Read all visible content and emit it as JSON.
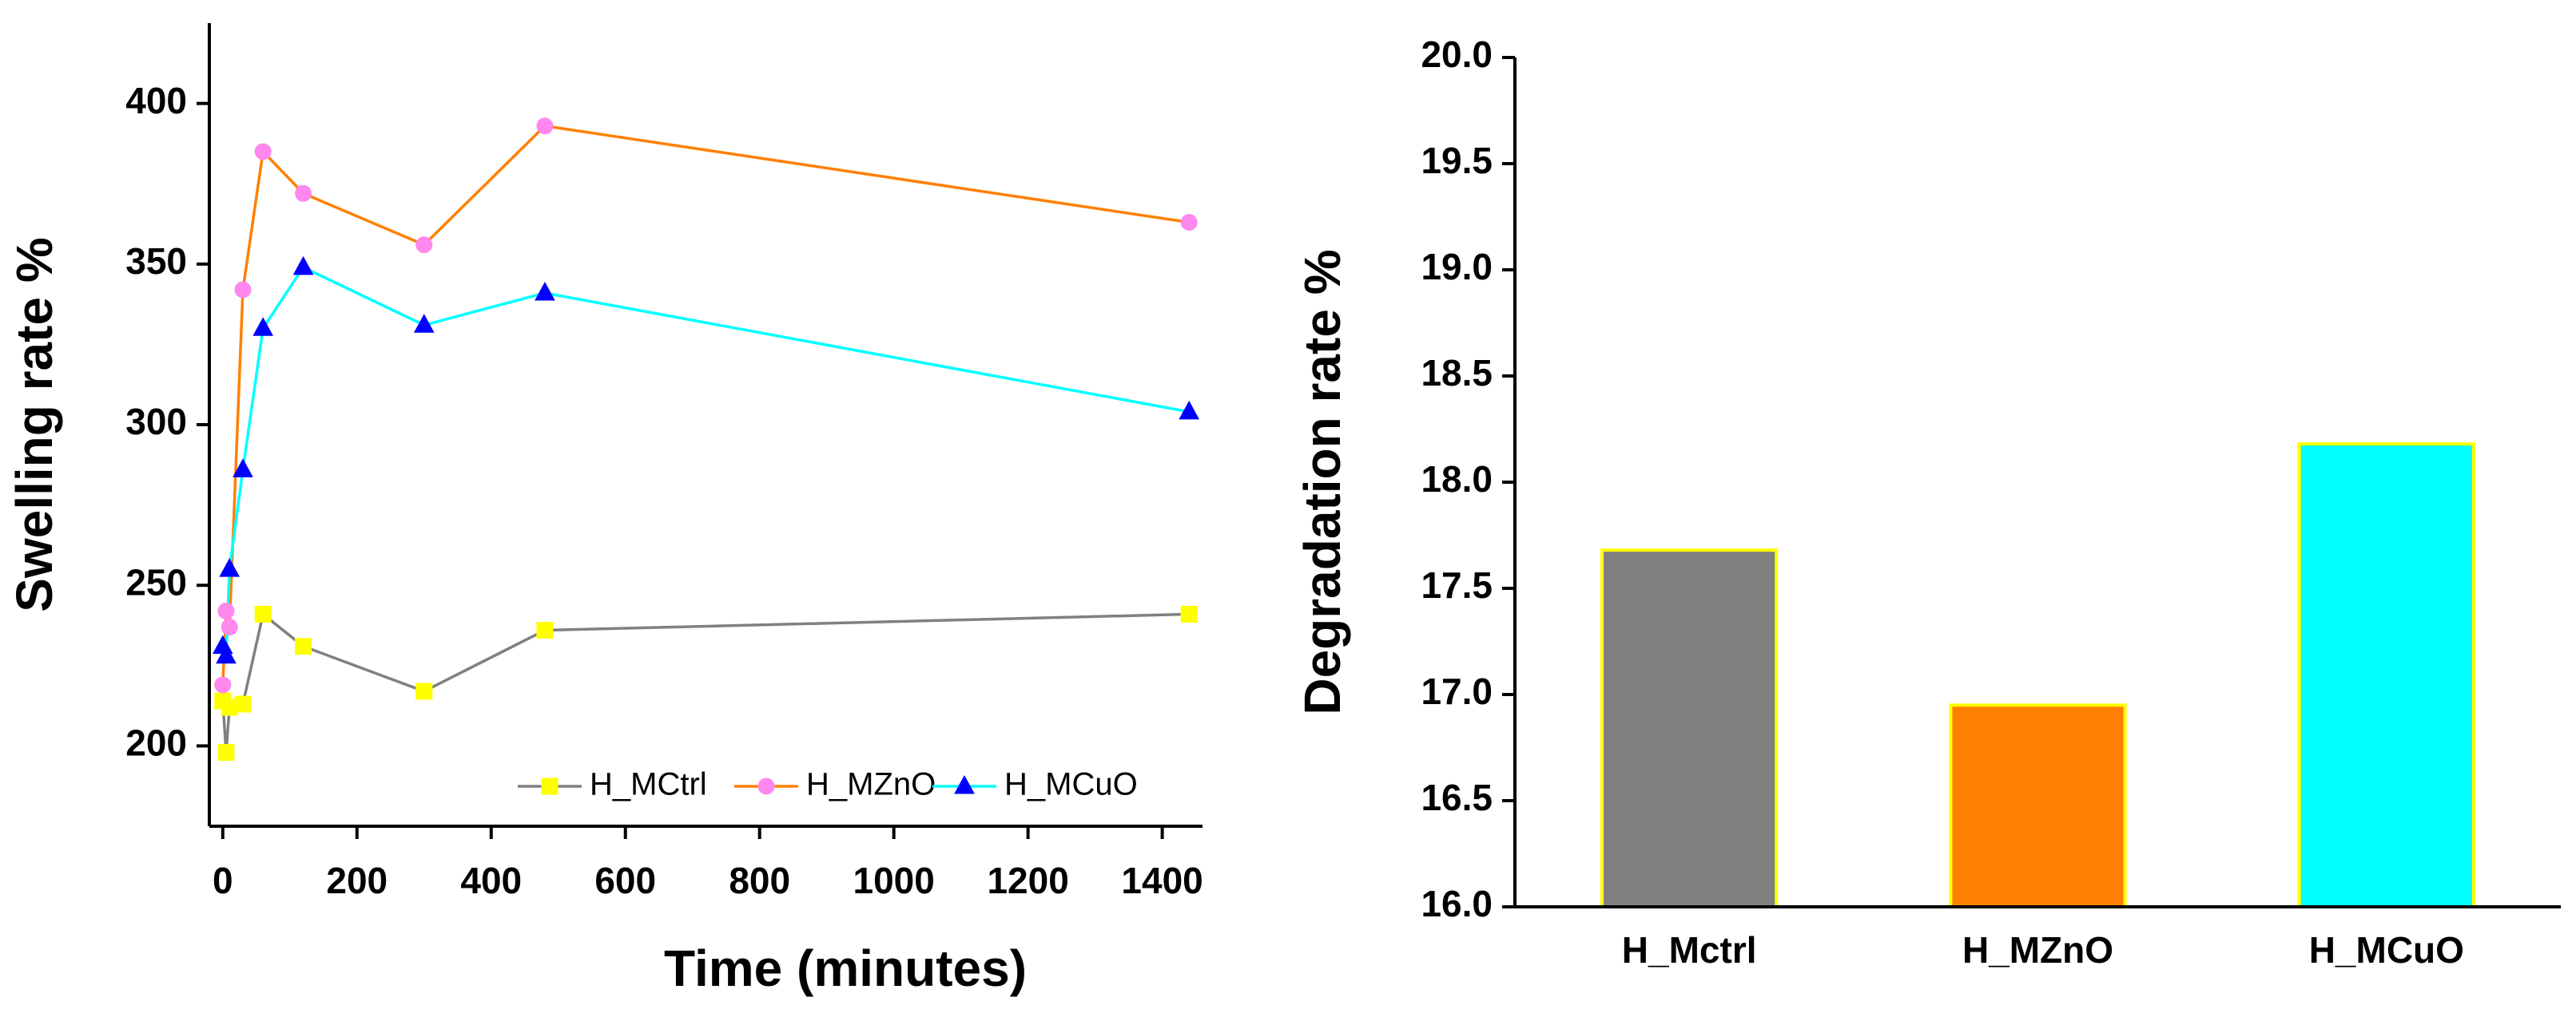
{
  "chart_data": [
    {
      "type": "line",
      "x_label": "Time (minutes)",
      "y_label": "Swelling rate %",
      "x": [
        0,
        5,
        10,
        30,
        60,
        120,
        300,
        480,
        1440
      ],
      "series": [
        {
          "name": "H_MCtrl",
          "color": "#808080",
          "marker": "square",
          "marker_color": "#ffff00",
          "values": [
            214,
            198,
            212,
            213,
            241,
            231,
            217,
            236,
            241
          ]
        },
        {
          "name": "H_MZnO",
          "color": "#ff8000",
          "marker": "circle",
          "marker_color": "#ff88ee",
          "values": [
            219,
            242,
            237,
            342,
            385,
            372,
            356,
            393,
            363
          ]
        },
        {
          "name": "H_MCuO",
          "color": "#00ffff",
          "marker": "triangle",
          "marker_color": "#0000ff",
          "values": [
            231,
            228,
            255,
            286,
            330,
            349,
            331,
            341,
            304
          ]
        }
      ],
      "xlim": [
        -20,
        1460
      ],
      "xticks": [
        0,
        200,
        400,
        600,
        800,
        1000,
        1200,
        1400
      ],
      "ylim": [
        175,
        425
      ],
      "yticks": [
        200,
        250,
        300,
        350,
        400
      ],
      "legend": "lower right"
    },
    {
      "type": "bar",
      "y_label": "Degradation rate %",
      "categories": [
        "H_Mctrl",
        "H_MZnO",
        "H_MCuO"
      ],
      "values": [
        17.68,
        16.95,
        18.18
      ],
      "colors": [
        "#808080",
        "#ff8000",
        "#00ffff"
      ],
      "edge_color": "#ffff00",
      "ylim": [
        16,
        20
      ],
      "yticks": [
        {
          "value": 16,
          "label": "16.0"
        },
        {
          "value": 16.5,
          "label": "16.5"
        },
        {
          "value": 17,
          "label": "17.0"
        },
        {
          "value": 17.5,
          "label": "17.5"
        },
        {
          "value": 18,
          "label": "18.0"
        },
        {
          "value": 18.5,
          "label": "18.5"
        },
        {
          "value": 19,
          "label": "19.0"
        },
        {
          "value": 19.5,
          "label": "19.5"
        },
        {
          "value": 20,
          "label": "20.0"
        }
      ]
    }
  ]
}
